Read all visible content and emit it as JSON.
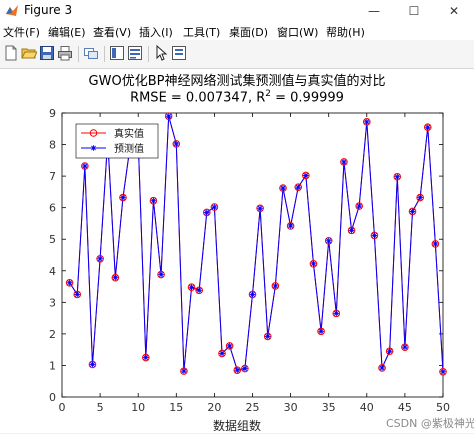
{
  "window": {
    "title": "Figure 3",
    "minimize": "—",
    "maximize": "☐",
    "close": "✕"
  },
  "menu": [
    "文件(F)",
    "编辑(E)",
    "查看(V)",
    "插入(I)",
    "工具(T)",
    "桌面(D)",
    "窗口(W)",
    "帮助(H)"
  ],
  "toolbar": [
    "new-icon",
    "open-icon",
    "save-icon",
    "print-icon",
    "link-icon",
    "panel-icon",
    "inspector-icon",
    "pointer-icon",
    "property-editor-icon"
  ],
  "watermark": "CSDN @紫极神光",
  "colors": {
    "true_series": "#ff0000",
    "pred_series": "#0000ff",
    "axes": "#000000"
  },
  "chart_data": {
    "type": "line",
    "title": "GWO优化BP神经网络测试集预测值与真实值的对比",
    "subtitle_prefix": "RMSE = 0.007347, R",
    "subtitle_sup": "2",
    "subtitle_suffix": " = 0.99999",
    "xlabel": "数据组数",
    "ylabel": "",
    "xlim": [
      0,
      50
    ],
    "ylim": [
      0,
      9
    ],
    "xticks": [
      0,
      5,
      10,
      15,
      20,
      25,
      30,
      35,
      40,
      45,
      50
    ],
    "yticks": [
      0,
      1,
      2,
      3,
      4,
      5,
      6,
      7,
      8,
      9
    ],
    "grid": false,
    "legend_position": "top-left",
    "x": [
      1,
      2,
      3,
      4,
      5,
      6,
      7,
      8,
      9,
      10,
      11,
      12,
      13,
      14,
      15,
      16,
      17,
      18,
      19,
      20,
      21,
      22,
      23,
      24,
      25,
      26,
      27,
      28,
      29,
      30,
      31,
      32,
      33,
      34,
      35,
      36,
      37,
      38,
      39,
      40,
      41,
      42,
      43,
      44,
      45,
      46,
      47,
      48,
      49,
      50
    ],
    "series": [
      {
        "name": "真实值",
        "marker": "circle",
        "values": [
          3.62,
          3.25,
          7.32,
          1.03,
          4.38,
          8.15,
          3.78,
          6.32,
          8.05,
          8.12,
          1.25,
          6.22,
          3.88,
          8.9,
          8.02,
          0.82,
          3.48,
          3.38,
          5.85,
          6.02,
          1.38,
          1.62,
          0.85,
          0.9,
          3.25,
          5.98,
          1.92,
          3.52,
          6.62,
          5.42,
          6.65,
          7.02,
          4.22,
          2.08,
          4.95,
          2.65,
          7.45,
          5.28,
          6.05,
          8.72,
          5.12,
          0.92,
          1.45,
          6.98,
          1.58,
          5.88,
          6.32,
          8.55,
          4.85,
          0.8
        ]
      },
      {
        "name": "预测值",
        "marker": "star",
        "values": [
          3.62,
          3.25,
          7.32,
          1.03,
          4.38,
          8.15,
          3.78,
          6.32,
          8.05,
          8.12,
          1.25,
          6.22,
          3.88,
          8.9,
          8.02,
          0.82,
          3.48,
          3.38,
          5.85,
          6.02,
          1.38,
          1.62,
          0.85,
          0.9,
          3.25,
          5.98,
          1.92,
          3.52,
          6.62,
          5.42,
          6.65,
          7.02,
          4.22,
          2.08,
          4.95,
          2.65,
          7.45,
          5.28,
          6.05,
          8.72,
          5.12,
          0.92,
          1.45,
          6.98,
          1.58,
          5.88,
          6.32,
          8.55,
          4.85,
          0.8
        ]
      }
    ]
  }
}
